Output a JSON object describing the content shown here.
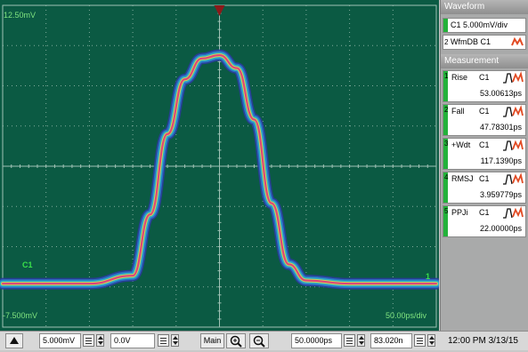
{
  "screen": {
    "top_left_scale": "12.50mV",
    "bottom_left_scale": "-7.500mV",
    "bottom_right_scale": "50.00ps/div",
    "channel_label": "C1",
    "ground_marker": "1",
    "colors": {
      "background": "#0b5a43",
      "grid": "#9fc1b4",
      "trigger": "#8b1a1a",
      "channel": "#39e04a"
    }
  },
  "chart_data": {
    "type": "line",
    "title": "",
    "xlabel": "",
    "ylabel": "",
    "x_range": [
      -250,
      250
    ],
    "y_range": [
      -7.5,
      12.5
    ],
    "grid": true,
    "series": [
      {
        "x": [
          -250,
          -150,
          -100,
          -80,
          -60,
          -40,
          -20,
          0,
          20,
          40,
          60,
          80,
          100,
          150,
          250
        ],
        "values": [
          -4.8,
          -4.8,
          -4.3,
          -0.5,
          4.5,
          7.9,
          9.2,
          9.4,
          8.6,
          5.4,
          0.2,
          -3.6,
          -4.6,
          -4.8,
          -4.8
        ]
      }
    ]
  },
  "panel": {
    "waveform_header": "Waveform",
    "waveform_items": [
      {
        "text": "C1 5.000mV/div"
      },
      {
        "num": "2",
        "text": "WfmDB C1"
      }
    ],
    "measurement_header": "Measurement",
    "measurements": [
      {
        "idx": "1",
        "name": "Rise",
        "ch": "C1",
        "value": "53.00613ps"
      },
      {
        "idx": "2",
        "name": "Fall",
        "ch": "C1",
        "value": "47.78301ps"
      },
      {
        "idx": "3",
        "name": "+Wdt",
        "ch": "C1",
        "value": "117.1390ps"
      },
      {
        "idx": "4",
        "name": "RMSJ",
        "ch": "C1",
        "value": "3.959779ps"
      },
      {
        "idx": "5",
        "name": "PPJi",
        "ch": "C1",
        "value": "22.00000ps"
      }
    ]
  },
  "toolbar": {
    "vertical_scale": "5.000mV",
    "offset": "0.0V",
    "main_button": "Main",
    "timebase": "50.0000ps",
    "position": "83.020n",
    "datetime": "12:00 PM 3/13/15"
  }
}
